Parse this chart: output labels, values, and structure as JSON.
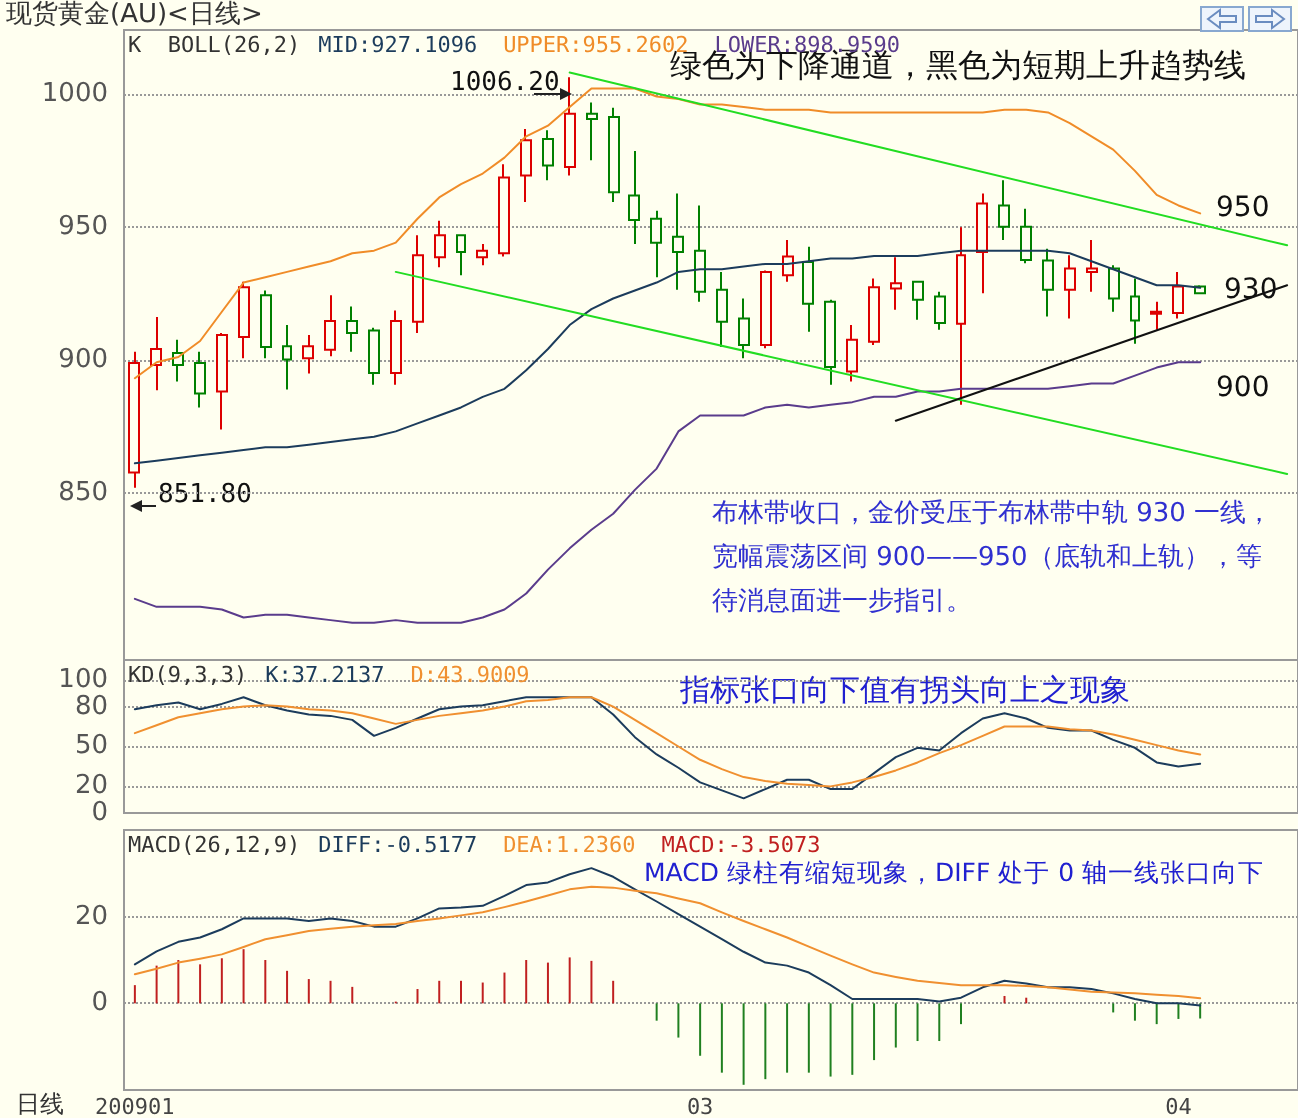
{
  "chart_data": [
    {
      "type": "candlestick",
      "title": "现货黄金(AU)<日线>",
      "subtitle": "K  BOLL(26,2)",
      "categories": [
        null,
        null,
        null,
        null,
        null,
        null,
        null,
        null,
        null,
        null,
        null,
        null,
        null,
        null,
        null,
        null,
        null,
        null,
        null,
        null,
        null,
        null,
        null,
        null,
        null,
        null,
        null,
        null,
        null,
        null,
        null,
        null,
        null,
        null,
        null,
        null,
        null,
        null,
        null,
        null,
        null,
        null,
        null,
        null,
        null,
        null,
        null,
        null,
        null,
        null,
        null,
        null,
        null,
        null
      ],
      "ohlc": [
        [
          857.5,
          903,
          851.8,
          898.75
        ],
        [
          898,
          916,
          888.5,
          904
        ],
        [
          902.5,
          907.5,
          891.75,
          898
        ],
        [
          898.75,
          903,
          882,
          887.25
        ],
        [
          888,
          910,
          873.75,
          909.25
        ],
        [
          908.5,
          929.25,
          900.5,
          927.25
        ],
        [
          924.25,
          926,
          900.5,
          904.75
        ],
        [
          905,
          913,
          888.75,
          900
        ],
        [
          900.5,
          909.25,
          894.75,
          905
        ],
        [
          903.75,
          924.25,
          901.25,
          914.5
        ],
        [
          914.5,
          920,
          903,
          910
        ],
        [
          911,
          912,
          890.5,
          895
        ],
        [
          895,
          918.5,
          890.5,
          914.5
        ],
        [
          914.25,
          946.75,
          910,
          939.25
        ],
        [
          938.5,
          952.25,
          934.75,
          946.75
        ],
        [
          946.75,
          947,
          931.75,
          940.5
        ],
        [
          938.5,
          943.5,
          935.5,
          941
        ],
        [
          940,
          973.5,
          938.75,
          968.5
        ],
        [
          969.25,
          986.75,
          959.25,
          982.5
        ],
        [
          983,
          986.25,
          967.5,
          973
        ],
        [
          972.5,
          1006.2,
          969.25,
          992.5
        ],
        [
          992.5,
          996.75,
          975,
          990.5
        ],
        [
          991.25,
          994.75,
          959.25,
          963
        ],
        [
          961.75,
          978.5,
          943.5,
          952.5
        ],
        [
          953,
          956,
          931,
          944
        ],
        [
          946.25,
          962.5,
          926.25,
          940.5
        ],
        [
          941,
          958,
          921.75,
          925.5
        ],
        [
          926.25,
          933,
          904.75,
          914.25
        ],
        [
          915.5,
          923,
          900.5,
          905.5
        ],
        [
          905.5,
          933.5,
          904.25,
          933
        ],
        [
          931.75,
          945,
          929.25,
          938.75
        ],
        [
          936.75,
          942.5,
          910.5,
          921
        ],
        [
          921.75,
          922.5,
          890.5,
          897.25
        ],
        [
          895.5,
          913,
          891.75,
          907.5
        ],
        [
          906.75,
          930.5,
          905.5,
          927.25
        ],
        [
          926.75,
          938.5,
          918.75,
          928.75
        ],
        [
          929.25,
          929.5,
          915,
          922.5
        ],
        [
          923.75,
          925.5,
          911.25,
          913.75
        ],
        [
          913.5,
          949.75,
          883,
          939.25
        ],
        [
          940.5,
          962.5,
          925,
          958.75
        ],
        [
          958,
          967.5,
          945,
          950
        ],
        [
          950,
          956.75,
          936.25,
          937.5
        ],
        [
          937.25,
          941.75,
          916.25,
          926.25
        ],
        [
          926.25,
          939.25,
          915.5,
          934.25
        ],
        [
          933,
          945,
          925.5,
          934.25
        ],
        [
          934.25,
          935.5,
          918,
          923
        ],
        [
          923.75,
          930.5,
          906,
          914.75
        ],
        [
          917.25,
          921.75,
          911.25,
          918
        ],
        [
          917.5,
          933,
          915.5,
          927.5
        ],
        [
          927.5,
          928,
          924.75,
          925
        ],
        null,
        null,
        null,
        null
      ],
      "colors": [
        "#dd0000",
        "#dd0000",
        "#008000",
        "#008000",
        "#dd0000",
        "#dd0000",
        "#008000",
        "#008000",
        "#dd0000",
        "#dd0000",
        "#008000",
        "#008000",
        "#dd0000",
        "#dd0000",
        "#dd0000",
        "#008000",
        "#dd0000",
        "#dd0000",
        "#dd0000",
        "#008000",
        "#dd0000",
        "#008000",
        "#008000",
        "#008000",
        "#008000",
        "#008000",
        "#008000",
        "#008000",
        "#008000",
        "#dd0000",
        "#dd0000",
        "#008000",
        "#008000",
        "#dd0000",
        "#dd0000",
        "#dd0000",
        "#008000",
        "#008000",
        "#dd0000",
        "#dd0000",
        "#008000",
        "#008000",
        "#008000",
        "#dd0000",
        "#dd0000",
        "#008000",
        "#008000",
        "#dd0000",
        "#dd0000",
        "#008000",
        null,
        null,
        null,
        null
      ],
      "series": [
        {
          "name": "MID:927.1096",
          "type": "line",
          "color": "#1c3c5c",
          "values": [
            861,
            862,
            863,
            864,
            865,
            866,
            867,
            867,
            868,
            869,
            870,
            871,
            873,
            876,
            879,
            882,
            886,
            889,
            896,
            904,
            913,
            919,
            923,
            926,
            929,
            933,
            934,
            934,
            935,
            936,
            936,
            937,
            938,
            938,
            939,
            939,
            939,
            940,
            941,
            941,
            941,
            941,
            941,
            940,
            937,
            934,
            931,
            928,
            928,
            927,
            null,
            null,
            null,
            null
          ]
        },
        {
          "name": "UPPER:955.2602",
          "type": "line",
          "color": "#f08c28",
          "values": [
            893,
            899,
            901,
            907,
            918,
            929,
            931,
            933,
            935,
            937,
            940,
            941,
            944,
            953,
            961,
            966,
            970,
            976,
            984,
            988,
            995,
            1002,
            1002,
            1002,
            999,
            998,
            996,
            996,
            995,
            994,
            994,
            994,
            993,
            993,
            993,
            993,
            993,
            993,
            993,
            993,
            994,
            994,
            993,
            989,
            984,
            979,
            971,
            962,
            958,
            955,
            null,
            null,
            null,
            null
          ]
        },
        {
          "name": "LOWER:898.9590",
          "type": "line",
          "color": "#5a3c8c",
          "values": [
            810,
            807,
            807,
            807,
            806,
            803,
            804,
            804,
            803,
            802,
            801,
            801,
            802,
            801,
            801,
            801,
            803,
            806,
            812,
            821,
            829,
            836,
            842,
            851,
            859,
            873,
            879,
            879,
            879,
            882,
            883,
            882,
            883,
            884,
            886,
            886,
            888,
            888,
            889,
            889,
            889,
            889,
            889,
            890,
            891,
            891,
            894,
            897,
            899,
            899,
            null,
            null,
            null,
            null
          ]
        },
        {
          "type": "line",
          "color": "#22dd22",
          "values": [
            null,
            null,
            null,
            null,
            null,
            null,
            null,
            null,
            null,
            null,
            null,
            null,
            null,
            null,
            null,
            null,
            null,
            null,
            null,
            null,
            1008,
            null,
            null,
            null,
            null,
            null,
            null,
            null,
            null,
            null,
            null,
            null,
            null,
            null,
            null,
            null,
            null,
            null,
            null,
            null,
            null,
            null,
            null,
            null,
            null,
            null,
            null,
            null,
            null,
            null,
            null,
            null,
            null,
            943
          ]
        },
        {
          "type": "line",
          "color": "#22dd22",
          "values": [
            null,
            null,
            null,
            null,
            null,
            null,
            null,
            null,
            null,
            null,
            null,
            null,
            933,
            null,
            null,
            null,
            null,
            null,
            null,
            null,
            null,
            null,
            null,
            null,
            null,
            null,
            null,
            null,
            null,
            null,
            null,
            null,
            null,
            null,
            null,
            null,
            null,
            null,
            null,
            null,
            null,
            null,
            null,
            null,
            null,
            null,
            null,
            null,
            null,
            null,
            null,
            null,
            null,
            857
          ]
        },
        {
          "type": "line",
          "color": "#111111",
          "values": [
            null,
            null,
            null,
            null,
            null,
            null,
            null,
            null,
            null,
            null,
            null,
            null,
            null,
            null,
            null,
            null,
            null,
            null,
            null,
            null,
            null,
            null,
            null,
            null,
            null,
            null,
            null,
            null,
            null,
            null,
            null,
            null,
            null,
            null,
            null,
            877,
            null,
            null,
            null,
            null,
            null,
            null,
            null,
            null,
            null,
            null,
            null,
            null,
            null,
            null,
            null,
            null,
            null,
            928
          ]
        }
      ],
      "ylim": [
        787,
        1024
      ],
      "yticks": [
        850,
        900,
        950,
        1000
      ],
      "grid": "y",
      "legend": "top left",
      "tick_labels": "y",
      "marker": "none",
      "annotations": [
        "绿色为下降通道，黑色为短期上升趋势线",
        "布林带收口，金价受压于布林带中轨 930 一线，宽幅震荡区间 900——950（底轨和上轨），等待消息面进一步指引。",
        "1006.20",
        "851.80",
        "950",
        "930",
        "900"
      ]
    },
    {
      "type": "line",
      "subtitle": "KD(9,3,3)",
      "categories": [
        null,
        null,
        null,
        null,
        null,
        null,
        null,
        null,
        null,
        null,
        null,
        null,
        null,
        null,
        null,
        null,
        null,
        null,
        null,
        null,
        null,
        null,
        null,
        null,
        null,
        null,
        null,
        null,
        null,
        null,
        null,
        null,
        null,
        null,
        null,
        null,
        null,
        null,
        null,
        null,
        null,
        null,
        null,
        null,
        null,
        null,
        null,
        null,
        null,
        null,
        null,
        null,
        null,
        null
      ],
      "series": [
        {
          "name": "K:37.2137",
          "color": "#1c3c5c",
          "values": [
            78,
            81,
            83,
            78,
            82,
            87,
            81,
            77,
            74,
            73,
            70,
            58,
            64,
            71,
            78,
            80,
            81,
            84,
            87,
            87,
            87,
            87,
            74,
            57,
            44,
            34,
            23,
            17,
            11,
            18,
            25,
            25,
            18,
            18,
            30,
            42,
            49,
            47,
            60,
            71,
            75,
            71,
            64,
            62,
            62,
            55,
            49,
            38,
            35,
            37,
            null,
            null,
            null,
            null
          ]
        },
        {
          "name": "D:43.9009",
          "color": "#f09030",
          "values": [
            60,
            66,
            72,
            75,
            78,
            80,
            81,
            80,
            78,
            77,
            75,
            71,
            67,
            70,
            73,
            75,
            77,
            80,
            84,
            85,
            87,
            87,
            80,
            70,
            60,
            50,
            40,
            33,
            27,
            24,
            22,
            21,
            20,
            23,
            27,
            32,
            38,
            45,
            51,
            58,
            65,
            65,
            65,
            63,
            62,
            59,
            55,
            51,
            47,
            44,
            null,
            null,
            null,
            null
          ]
        }
      ],
      "ylim": [
        0,
        115
      ],
      "yticks": [
        0,
        20,
        50,
        80,
        100
      ],
      "grid": "y",
      "legend": "top left",
      "tick_labels": "y",
      "marker": "none",
      "annotations": [
        "指标张口向下值有拐头向上之现象"
      ]
    },
    {
      "type": "line",
      "subtitle": "MACD(26,12,9)",
      "xlabel": "日线",
      "categories": [
        "200901",
        null,
        null,
        null,
        null,
        null,
        null,
        null,
        null,
        null,
        null,
        null,
        null,
        null,
        null,
        null,
        null,
        null,
        null,
        null,
        null,
        null,
        null,
        null,
        null,
        null,
        "03",
        null,
        null,
        null,
        null,
        null,
        null,
        null,
        null,
        null,
        null,
        null,
        null,
        null,
        null,
        null,
        null,
        null,
        null,
        null,
        null,
        null,
        "04",
        null,
        null,
        null,
        null,
        null
      ],
      "series": [
        {
          "name": "DIFF:-0.5177",
          "color": "#1c3c5c",
          "values": [
            9,
            12,
            14.2,
            15.2,
            17.1,
            19.6,
            19.6,
            19.6,
            19,
            19.6,
            19,
            17.7,
            17.7,
            19.6,
            21.9,
            22.1,
            22.5,
            24.8,
            27.3,
            27.9,
            29.8,
            31.2,
            29.2,
            26.3,
            23.5,
            20.6,
            17.7,
            14.8,
            11.9,
            9.4,
            8.7,
            7.1,
            4.2,
            1,
            1,
            1,
            1,
            0.4,
            1.3,
            3.7,
            5.2,
            4.6,
            3.7,
            3.7,
            3.3,
            2.3,
            1,
            0,
            0,
            -0.5,
            null,
            null,
            null,
            null
          ]
        },
        {
          "name": "DEA:1.2360",
          "color": "#f09030",
          "values": [
            6.7,
            8,
            9.4,
            10.3,
            11.3,
            13,
            14.8,
            15.7,
            16.7,
            17.2,
            17.7,
            18,
            18.3,
            19,
            19.6,
            20.3,
            21,
            22.2,
            23.5,
            24.9,
            26.3,
            26.9,
            26.7,
            26,
            25.4,
            24.2,
            23.1,
            21,
            19,
            17.1,
            15.2,
            13.1,
            11,
            9,
            7.1,
            6.1,
            5.2,
            4.7,
            4.2,
            4.2,
            4.2,
            4,
            3.7,
            3.2,
            2.7,
            2.5,
            2.3,
            2,
            1.7,
            1.2,
            null,
            null,
            null,
            null
          ]
        },
        {
          "name": "MACD:-3.5073",
          "type": "bar",
          "colors": [
            "#c02020",
            "#c02020",
            "#c02020",
            "#c02020",
            "#c02020",
            "#c02020",
            "#c02020",
            "#c02020",
            "#c02020",
            "#c02020",
            "#c02020",
            "#c02020",
            "#c02020",
            "#c02020",
            "#c02020",
            "#c02020",
            "#c02020",
            "#c02020",
            "#c02020",
            "#c02020",
            "#c02020",
            "#c02020",
            "#c02020",
            "#c02020",
            "#208020",
            "#208020",
            "#208020",
            "#208020",
            "#208020",
            "#208020",
            "#208020",
            "#208020",
            "#208020",
            "#208020",
            "#208020",
            "#208020",
            "#208020",
            "#208020",
            "#208020",
            "#208020",
            "#c02020",
            "#c02020",
            "#c02020",
            "#c02020",
            "#208020",
            "#208020",
            "#208020",
            "#208020",
            "#208020",
            "#208020",
            null,
            null,
            null,
            null
          ],
          "values": [
            4.2,
            8.7,
            10,
            9,
            10.4,
            12.5,
            10,
            7.5,
            5.6,
            5.2,
            3.8,
            null,
            0.4,
            3.3,
            5.2,
            5.2,
            4.8,
            7.1,
            10,
            9.4,
            10.6,
            9.8,
            5.2,
            0,
            -4,
            -7.9,
            -12.1,
            -16,
            -18.8,
            -17.5,
            -16,
            -16,
            -16.9,
            -16.5,
            -13.1,
            -10.2,
            -8.7,
            -8.7,
            -4.8,
            null,
            1.7,
            1.3,
            null,
            0,
            null,
            -2.1,
            -4,
            -4.8,
            -3.6,
            -3.5,
            null,
            null,
            null,
            null
          ]
        }
      ],
      "ylim": [
        -20,
        40
      ],
      "yticks": [
        0,
        20
      ],
      "grid": "y",
      "legend": "top left",
      "marker": "none",
      "annotations": [
        "MACD 绿柱有缩短现象，DIFF 处于 0 轴一线张口向下"
      ]
    }
  ]
}
